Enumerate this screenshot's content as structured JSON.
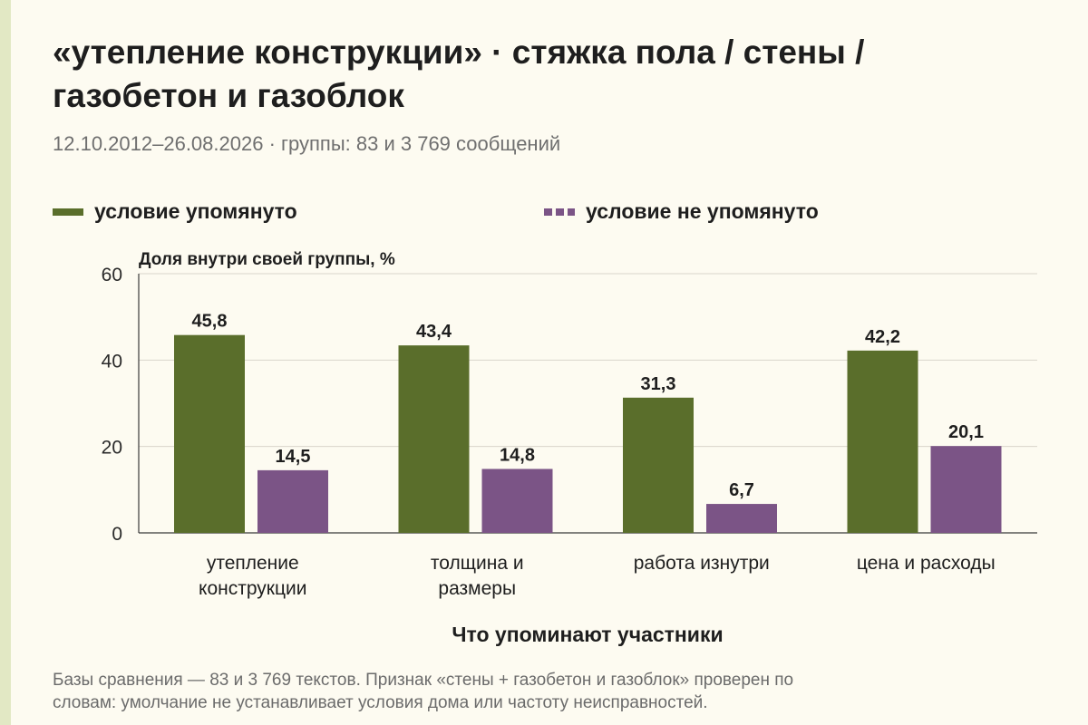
{
  "header": {
    "title_line1": "«утепление конструкции» · стяжка пола / стены /",
    "title_line2": "газобетон и газоблок",
    "subtitle": "12.10.2012–26.08.2026 · группы: 83 и 3 769 сообщений"
  },
  "footnote": {
    "line1": "Базы сравнения — 83 и 3 769 текстов. Признак «стены + газобетон и газоблок» проверен по",
    "line2": "словам: умолчание не устанавливает условия дома или частоту неисправностей."
  },
  "chart_data": {
    "type": "bar",
    "ylabel": "Доля внутри своей группы, %",
    "xlabel": "Что упоминают участники",
    "ylim": [
      0,
      60
    ],
    "yticks": [
      0,
      20,
      40,
      60
    ],
    "grid": true,
    "legend_position": "top",
    "categories": [
      [
        "утепление",
        "конструкции"
      ],
      [
        "толщина и",
        "размеры"
      ],
      [
        "работа изнутри"
      ],
      [
        "цена и расходы"
      ]
    ],
    "series": [
      {
        "name": "условие упомянуто",
        "color": "#5a6e2b",
        "values": [
          45.8,
          43.4,
          31.3,
          42.2
        ],
        "labels": [
          "45,8",
          "43,4",
          "31,3",
          "42,2"
        ]
      },
      {
        "name": "условие не упомянуто",
        "color": "#7b5486",
        "values": [
          14.5,
          14.8,
          6.7,
          20.1
        ],
        "labels": [
          "14,5",
          "14,8",
          "6,7",
          "20,1"
        ]
      }
    ]
  }
}
